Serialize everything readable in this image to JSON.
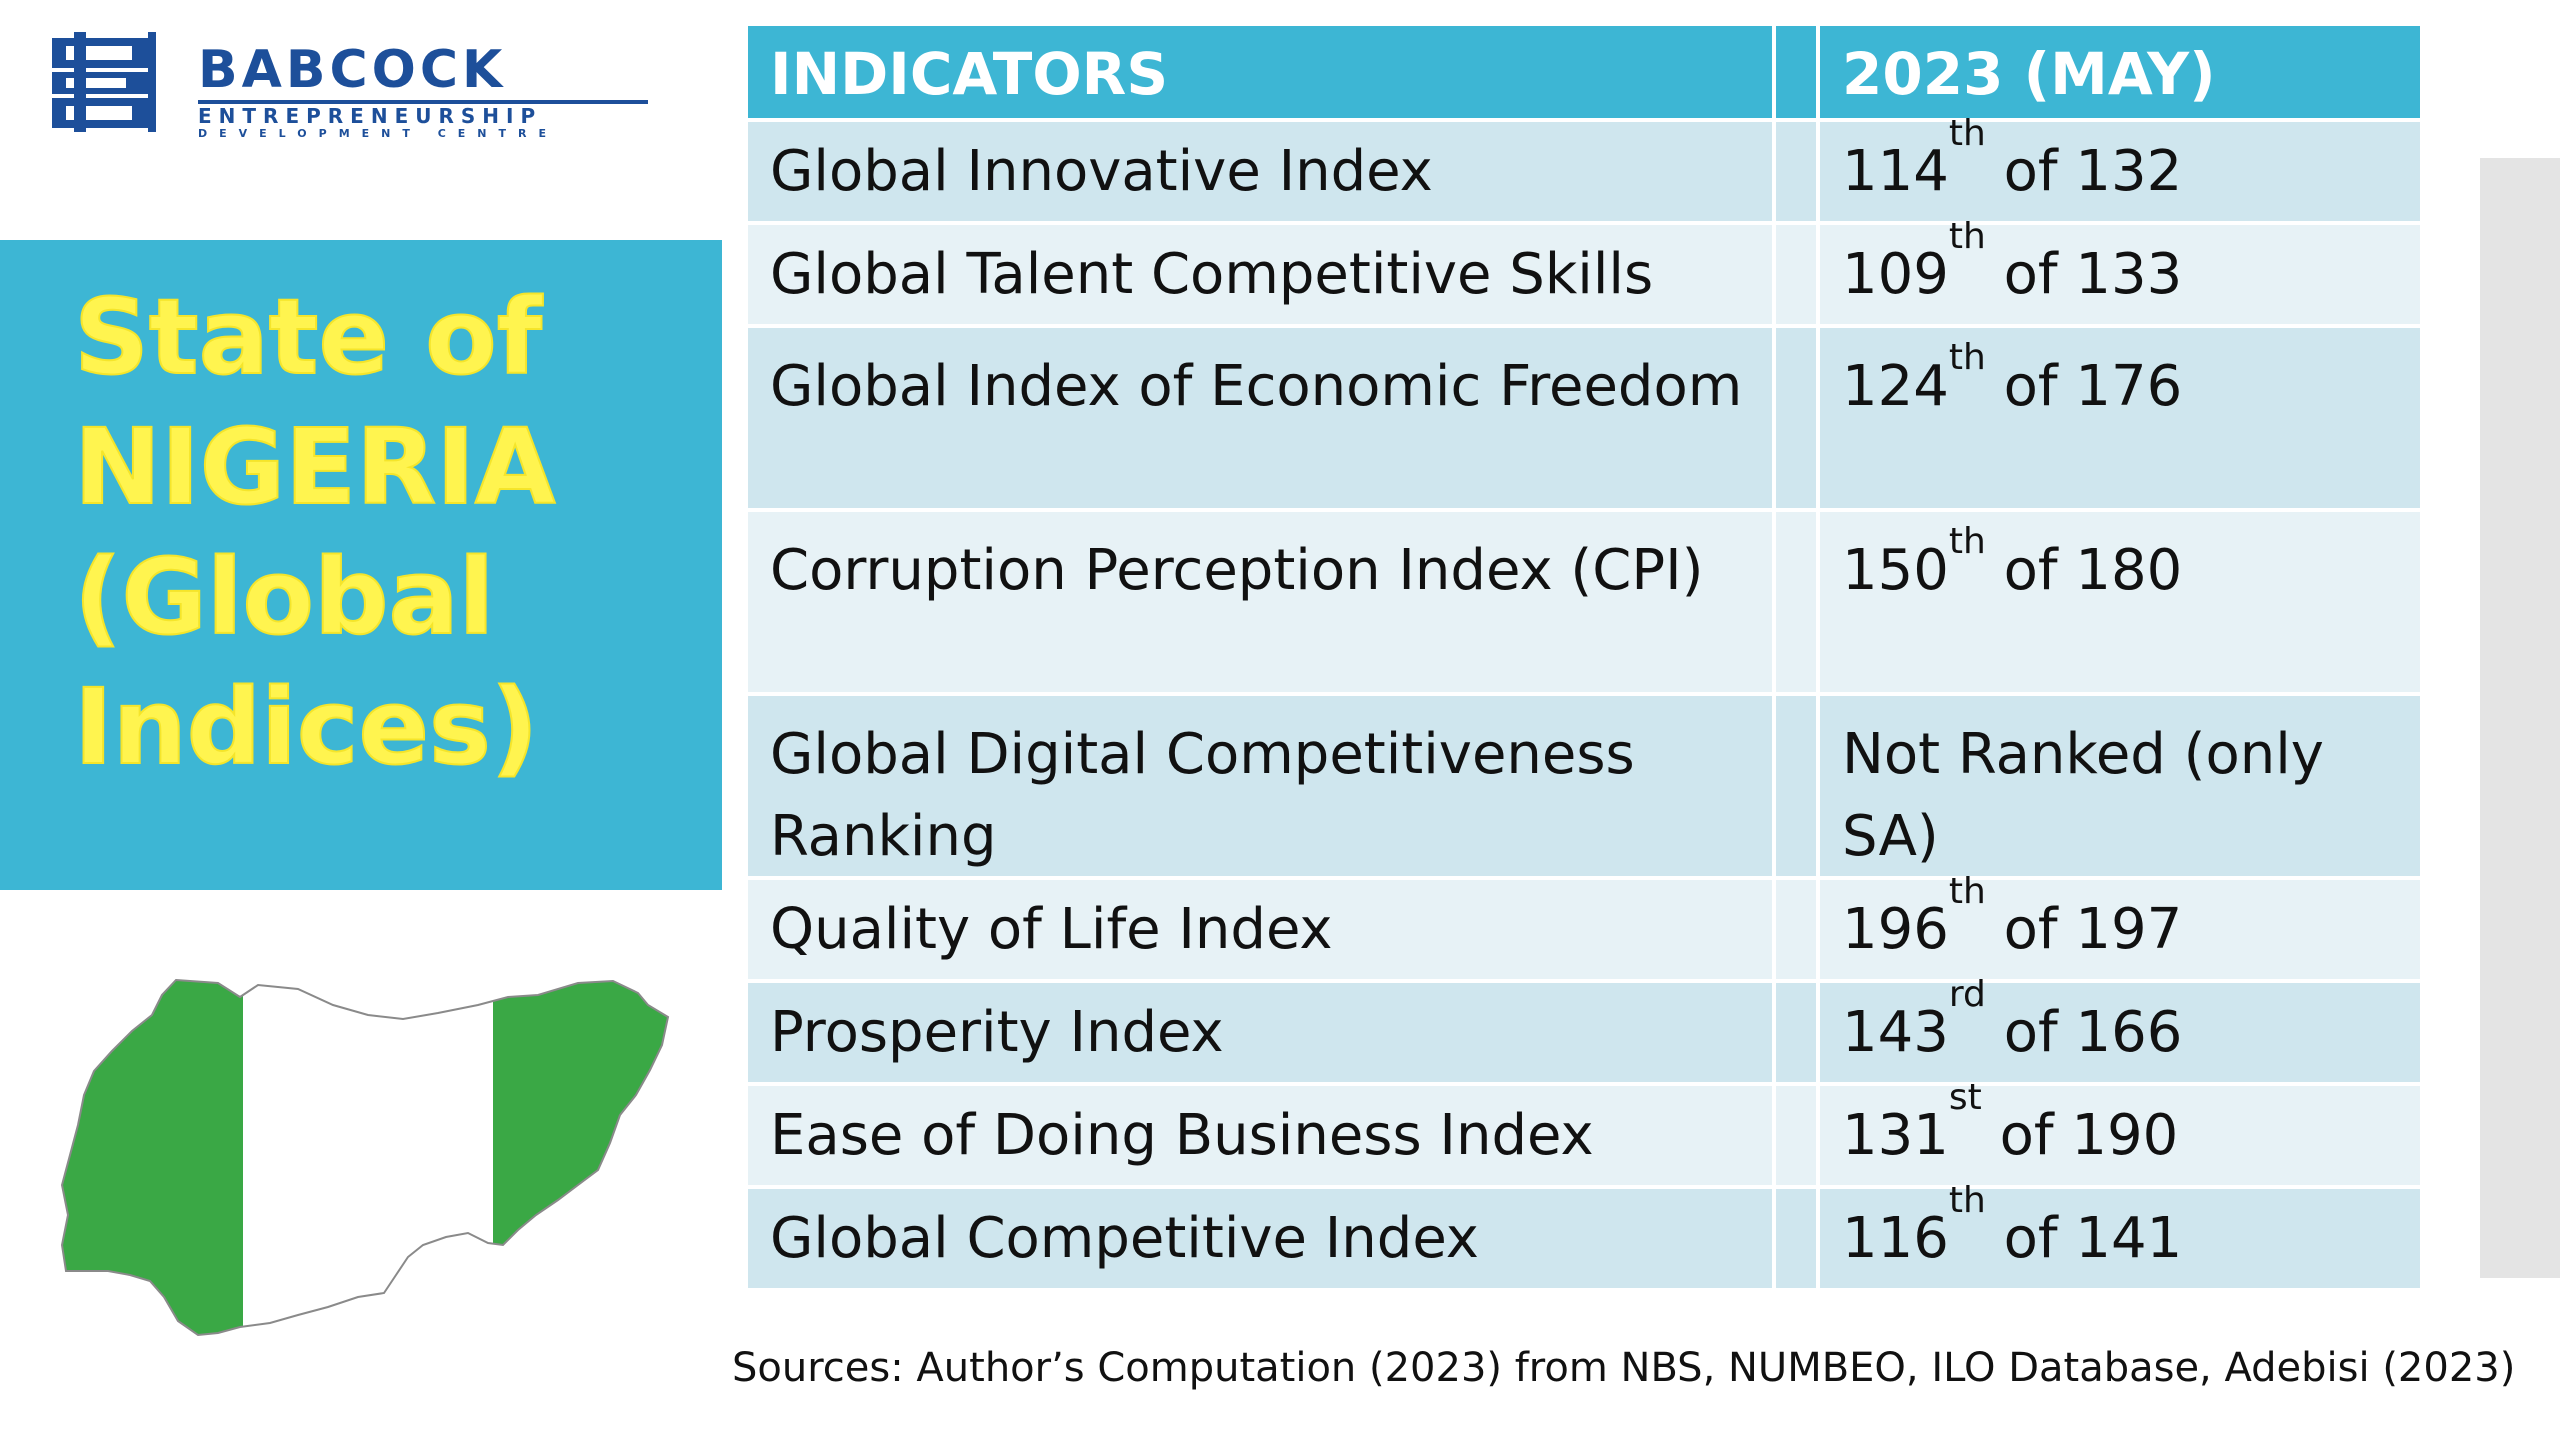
{
  "logo": {
    "name": "BABCOCK",
    "line1": "ENTREPRENEURSHIP",
    "line2": "DEVELOPMENT CENTRE",
    "color": "#1d4f9a"
  },
  "title": {
    "lines": [
      "State of",
      "NIGERIA",
      "(Global",
      "Indices)"
    ],
    "color": "#fff44f",
    "panel_color": "#3db6d4"
  },
  "map": {
    "icon": "nigeria-flag-map",
    "colors": {
      "green": "#3aa845",
      "white": "#ffffff"
    }
  },
  "table": {
    "headers": {
      "indicator": "INDICATORS",
      "value": "2023 (MAY)"
    },
    "rows": [
      {
        "indicator": "Global Innovative Index",
        "rank": "114",
        "suffix": "th",
        "total": " of 132"
      },
      {
        "indicator": "Global Talent Competitive Skills",
        "rank": "109",
        "suffix": "th",
        "total": " of 133"
      },
      {
        "indicator": "Global Index of Economic Freedom",
        "rank": "124",
        "suffix": "th",
        "total": " of 176"
      },
      {
        "indicator": "Corruption Perception Index (CPI)",
        "rank": "150",
        "suffix": "th",
        "total": " of 180"
      },
      {
        "indicator": "Global Digital Competitiveness Ranking",
        "rank": "Not Ranked (only SA)",
        "suffix": "",
        "total": ""
      },
      {
        "indicator": "Quality of Life Index",
        "rank": "196",
        "suffix": "th",
        "total": " of 197"
      },
      {
        "indicator": "Prosperity Index",
        "rank": "143",
        "suffix": "rd",
        "total": " of 166"
      },
      {
        "indicator": "Ease of Doing Business Index",
        "rank": "131",
        "suffix": "st",
        "total": " of 190"
      },
      {
        "indicator": "Global Competitive Index",
        "rank": "116",
        "suffix": "th",
        "total": " of 141"
      }
    ],
    "header_color": "#3db6d4",
    "row_dark": "#cfe6ee",
    "row_light": "#e7f2f6"
  },
  "sources": "Sources: Author’s Computation (2023) from NBS, NUMBEO, ILO Database, Adebisi (2023)"
}
